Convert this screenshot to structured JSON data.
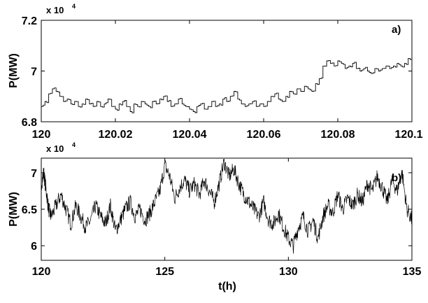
{
  "chart_data": [
    {
      "type": "line",
      "panel_label": "a)",
      "ylabel": "P(MW)",
      "yscale_label": "x 10",
      "yscale_exponent": "4",
      "xlim": [
        120,
        120.1
      ],
      "ylim": [
        6.8,
        7.2
      ],
      "xticks": [
        "120",
        "120.02",
        "120.04",
        "120.06",
        "120.08",
        "120.1"
      ],
      "xtick_values": [
        120,
        120.02,
        120.04,
        120.06,
        120.08,
        120.1
      ],
      "yticks": [
        "6.8",
        "7",
        "7.2"
      ],
      "ytick_values": [
        6.8,
        7.0,
        7.2
      ],
      "series": [
        {
          "step": true,
          "x": [
            120.0,
            120.001,
            120.002,
            120.003,
            120.004,
            120.005,
            120.006,
            120.007,
            120.008,
            120.009,
            120.01,
            120.011,
            120.012,
            120.013,
            120.014,
            120.015,
            120.016,
            120.017,
            120.018,
            120.019,
            120.02,
            120.021,
            120.022,
            120.023,
            120.024,
            120.025,
            120.026,
            120.027,
            120.028,
            120.029,
            120.03,
            120.031,
            120.032,
            120.033,
            120.034,
            120.035,
            120.036,
            120.037,
            120.038,
            120.039,
            120.04,
            120.041,
            120.042,
            120.043,
            120.044,
            120.045,
            120.046,
            120.047,
            120.048,
            120.049,
            120.05,
            120.051,
            120.052,
            120.053,
            120.054,
            120.055,
            120.056,
            120.057,
            120.058,
            120.059,
            120.06,
            120.061,
            120.062,
            120.063,
            120.064,
            120.065,
            120.066,
            120.067,
            120.068,
            120.069,
            120.07,
            120.071,
            120.072,
            120.073,
            120.074,
            120.075,
            120.076,
            120.077,
            120.078,
            120.079,
            120.08,
            120.081,
            120.082,
            120.083,
            120.084,
            120.085,
            120.086,
            120.087,
            120.088,
            120.089,
            120.09,
            120.091,
            120.092,
            120.093,
            120.094,
            120.095,
            120.096,
            120.097,
            120.098,
            120.099,
            120.1
          ],
          "y": [
            6.86,
            6.88,
            6.91,
            6.93,
            6.92,
            6.9,
            6.88,
            6.89,
            6.87,
            6.88,
            6.86,
            6.87,
            6.89,
            6.87,
            6.86,
            6.88,
            6.86,
            6.87,
            6.89,
            6.86,
            6.85,
            6.87,
            6.88,
            6.86,
            6.84,
            6.87,
            6.86,
            6.88,
            6.87,
            6.86,
            6.88,
            6.87,
            6.89,
            6.9,
            6.88,
            6.86,
            6.87,
            6.89,
            6.87,
            6.86,
            6.85,
            6.84,
            6.86,
            6.87,
            6.85,
            6.86,
            6.88,
            6.86,
            6.87,
            6.89,
            6.88,
            6.9,
            6.92,
            6.89,
            6.87,
            6.86,
            6.87,
            6.88,
            6.86,
            6.87,
            6.86,
            6.88,
            6.9,
            6.91,
            6.89,
            6.88,
            6.9,
            6.92,
            6.91,
            6.93,
            6.92,
            6.94,
            6.93,
            6.92,
            6.95,
            6.97,
            7.02,
            7.04,
            7.03,
            7.02,
            7.04,
            7.03,
            7.01,
            7.02,
            7.03,
            7.01,
            7.0,
            7.01,
            7.0,
            6.99,
            7.01,
            7.0,
            7.01,
            7.02,
            7.01,
            7.02,
            7.03,
            7.02,
            7.03,
            7.05,
            7.03
          ]
        }
      ]
    },
    {
      "type": "line",
      "panel_label": "b)",
      "ylabel": "P(MW)",
      "xlabel": "t(h)",
      "yscale_label": "x 10",
      "yscale_exponent": "4",
      "xlim": [
        120,
        135
      ],
      "ylim": [
        5.8,
        7.2
      ],
      "xticks": [
        "120",
        "125",
        "130",
        "135"
      ],
      "xtick_values": [
        120,
        125,
        130,
        135
      ],
      "yticks": [
        "6",
        "6.5",
        "7"
      ],
      "ytick_values": [
        6.0,
        6.5,
        7.0
      ],
      "series": [
        {
          "x": [
            120.0,
            120.1,
            120.2,
            120.3,
            120.4,
            120.6,
            120.8,
            121.0,
            121.2,
            121.4,
            121.6,
            121.8,
            122.0,
            122.2,
            122.4,
            122.6,
            122.8,
            123.0,
            123.2,
            123.4,
            123.6,
            123.8,
            124.0,
            124.2,
            124.4,
            124.6,
            124.8,
            125.0,
            125.2,
            125.4,
            125.6,
            125.8,
            126.0,
            126.2,
            126.4,
            126.6,
            126.8,
            127.0,
            127.2,
            127.4,
            127.6,
            127.8,
            128.0,
            128.2,
            128.4,
            128.6,
            128.8,
            129.0,
            129.2,
            129.4,
            129.6,
            129.8,
            130.0,
            130.2,
            130.4,
            130.6,
            130.8,
            131.0,
            131.2,
            131.4,
            131.6,
            131.8,
            132.0,
            132.2,
            132.4,
            132.6,
            132.8,
            133.0,
            133.2,
            133.4,
            133.6,
            133.8,
            134.0,
            134.2,
            134.4,
            134.6,
            134.8,
            135.0
          ],
          "y": [
            6.85,
            7.0,
            6.75,
            6.5,
            6.4,
            6.55,
            6.7,
            6.5,
            6.3,
            6.55,
            6.4,
            6.25,
            6.35,
            6.55,
            6.4,
            6.3,
            6.55,
            6.2,
            6.35,
            6.5,
            6.6,
            6.4,
            6.5,
            6.35,
            6.45,
            6.6,
            6.75,
            7.1,
            6.95,
            6.65,
            6.8,
            6.9,
            6.75,
            6.85,
            6.7,
            6.9,
            6.75,
            6.6,
            6.85,
            7.15,
            6.95,
            7.05,
            6.85,
            6.7,
            6.6,
            6.5,
            6.4,
            6.6,
            6.35,
            6.3,
            6.45,
            6.25,
            6.1,
            6.0,
            6.25,
            6.4,
            6.2,
            6.35,
            6.1,
            6.4,
            6.55,
            6.45,
            6.7,
            6.5,
            6.65,
            6.55,
            6.7,
            6.6,
            6.85,
            6.75,
            6.95,
            6.8,
            6.6,
            6.9,
            6.75,
            7.0,
            6.5,
            6.35
          ]
        }
      ]
    }
  ]
}
